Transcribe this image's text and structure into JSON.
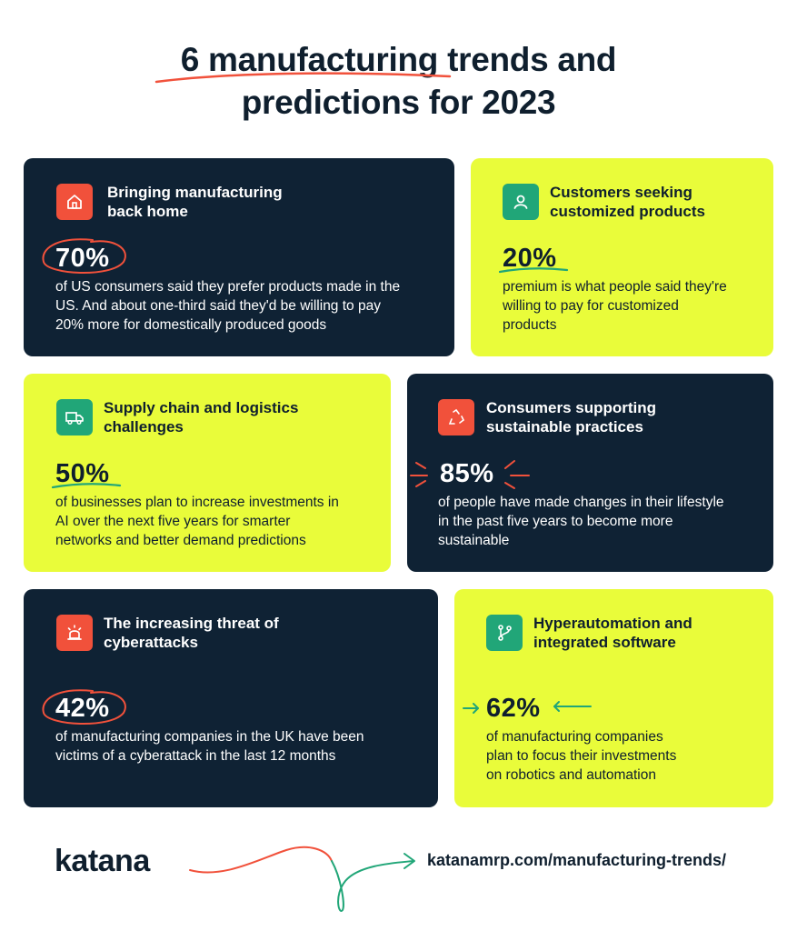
{
  "title": {
    "line1": "6 manufacturing trends and",
    "line2": "predictions for 2023"
  },
  "colors": {
    "dark_card": "#0f2234",
    "lime_card": "#e9fc3a",
    "accent_red": "#f1513b",
    "accent_green": "#21a678"
  },
  "cards": [
    {
      "title_line1": "Bringing manufacturing",
      "title_line2": "back home",
      "icon": "home-icon",
      "stat": "70%",
      "desc_line1": "of US consumers said they prefer products made in the",
      "desc_line2": "US. And about one-third said they'd be willing to pay",
      "desc_line3": "20% more for domestically produced goods"
    },
    {
      "title_line1": "Customers seeking",
      "title_line2": "customized products",
      "icon": "person-icon",
      "stat": "20%",
      "desc_line1": "premium is what people said they're",
      "desc_line2": "willing to pay for customized",
      "desc_line3": "products"
    },
    {
      "title_line1": "Supply chain and logistics",
      "title_line2": "challenges",
      "icon": "truck-icon",
      "stat": "50%",
      "desc_line1": "of businesses plan to increase investments in",
      "desc_line2": "AI over the next five years for smarter",
      "desc_line3": "networks and better demand predictions"
    },
    {
      "title_line1": "Consumers supporting",
      "title_line2": "sustainable practices",
      "icon": "recycle-icon",
      "stat": "85%",
      "desc_line1": "of people have made changes in their lifestyle",
      "desc_line2": "in the past five years to become more",
      "desc_line3": "sustainable"
    },
    {
      "title_line1": "The increasing threat of",
      "title_line2": "cyberattacks",
      "icon": "alarm-icon",
      "stat": "42%",
      "desc_line1": "of manufacturing companies in the UK have been",
      "desc_line2": "victims of a cyberattack in the last 12 months"
    },
    {
      "title_line1": "Hyperautomation and",
      "title_line2": "integrated software",
      "icon": "branch-icon",
      "stat": "62%",
      "desc_line1": "of manufacturing companies",
      "desc_line2": "plan to focus their investments",
      "desc_line3": "on robotics and automation"
    }
  ],
  "footer": {
    "logo": "katana",
    "url": "katanamrp.com/manufacturing-trends/"
  }
}
